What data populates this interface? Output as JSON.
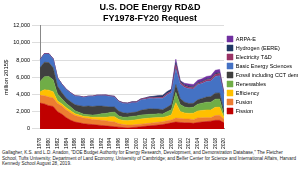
{
  "chart_data": {
    "type": "line",
    "stacked": true,
    "title": "U.S. DOE Energy RD&D",
    "subtitle": "FY1978-FY20 Request",
    "y_label": "million 2015$",
    "source": "Gallagher, K.S. and L.D. Anadon, \"DOE Budget Authority for Energy Research, Development, and Demonstration Database,\" The Fletcher School, Tufts University; Department of Land Economy, University of Cambridge; and Belfer Center for Science and International Affairs, Harvard Kennedy School August 28, 2019.",
    "legend": "right",
    "grid": true,
    "ylim": [
      0,
      12000
    ],
    "yticks": [
      0,
      {
        "value": 2000,
        "label": "2,000"
      },
      {
        "value": 4000,
        "label": "4,000"
      },
      {
        "value": 6000,
        "label": "6,000"
      },
      {
        "value": 8000,
        "label": "8,000"
      },
      {
        "value": 10000,
        "label": "10,000"
      },
      {
        "value": 12000,
        "label": "12,000"
      }
    ],
    "categories": [
      "1978",
      null,
      "1980",
      null,
      "1982",
      null,
      "1984",
      null,
      "1986",
      null,
      "1988",
      null,
      "1990",
      null,
      "1992",
      null,
      "1994",
      null,
      "1996",
      null,
      "1998",
      null,
      "2000",
      null,
      "2002",
      null,
      "2004",
      null,
      "2006",
      null,
      "2008",
      null,
      "2010",
      null,
      "2012",
      null,
      "2014",
      null,
      "2016",
      null,
      "2018",
      null,
      "2020"
    ],
    "series": [
      {
        "name": "Fission",
        "color": "#c00000",
        "values": [
          3000,
          2900,
          2700,
          2600,
          2000,
          1700,
          1300,
          1000,
          800,
          700,
          600,
          550,
          500,
          450,
          400,
          350,
          300,
          250,
          200,
          150,
          100,
          150,
          200,
          250,
          300,
          350,
          400,
          450,
          500,
          600,
          700,
          800,
          750,
          700,
          700,
          650,
          750,
          800,
          850,
          900,
          1000,
          1000,
          700
        ]
      },
      {
        "name": "Fusion",
        "color": "#ed7d31",
        "values": [
          900,
          950,
          1000,
          1000,
          950,
          950,
          900,
          850,
          750,
          700,
          650,
          650,
          600,
          600,
          600,
          600,
          550,
          550,
          400,
          350,
          350,
          300,
          300,
          300,
          300,
          300,
          300,
          330,
          330,
          350,
          330,
          450,
          470,
          450,
          450,
          420,
          520,
          480,
          450,
          400,
          550,
          580,
          420
        ]
      },
      {
        "name": "Efficiency",
        "color": "#ffc000",
        "values": [
          400,
          700,
          800,
          700,
          300,
          250,
          250,
          250,
          200,
          200,
          200,
          200,
          250,
          300,
          350,
          400,
          550,
          600,
          500,
          480,
          500,
          550,
          550,
          600,
          600,
          600,
          580,
          550,
          500,
          500,
          600,
          1800,
          800,
          700,
          650,
          750,
          800,
          850,
          900,
          900,
          950,
          950,
          200
        ]
      },
      {
        "name": "Renewables",
        "color": "#70ad47",
        "values": [
          1200,
          1500,
          1600,
          1400,
          800,
          600,
          500,
          450,
          350,
          300,
          250,
          250,
          250,
          300,
          400,
          450,
          500,
          550,
          400,
          380,
          420,
          450,
          450,
          450,
          450,
          440,
          430,
          420,
          400,
          550,
          600,
          1200,
          800,
          700,
          650,
          700,
          800,
          850,
          900,
          900,
          950,
          950,
          250
        ]
      },
      {
        "name": "Fossil including CCT demo",
        "color": "#404040",
        "values": [
          1600,
          1700,
          1600,
          1400,
          900,
          700,
          600,
          600,
          700,
          800,
          900,
          1000,
          1000,
          1000,
          900,
          800,
          650,
          600,
          550,
          500,
          450,
          450,
          450,
          550,
          600,
          650,
          600,
          550,
          500,
          500,
          600,
          900,
          700,
          550,
          500,
          450,
          500,
          550,
          600,
          650,
          700,
          700,
          550
        ]
      },
      {
        "name": "Basic Energy Sciences",
        "color": "#4472c4",
        "values": [
          900,
          950,
          1000,
          1000,
          950,
          950,
          1000,
          1000,
          1000,
          1050,
          1050,
          1100,
          1150,
          1200,
          1200,
          1250,
          1200,
          1150,
          1100,
          1100,
          1100,
          1150,
          1100,
          1200,
          1200,
          1200,
          1200,
          1250,
          1300,
          1450,
          1400,
          1800,
          1700,
          1700,
          1700,
          1650,
          1750,
          1750,
          1800,
          1800,
          1950,
          2000,
          1850
        ]
      },
      {
        "name": "Electricity T&D",
        "color": "#993366",
        "values": [
          50,
          60,
          60,
          60,
          50,
          50,
          50,
          50,
          50,
          50,
          50,
          50,
          60,
          60,
          70,
          80,
          80,
          70,
          60,
          60,
          60,
          70,
          80,
          90,
          100,
          120,
          120,
          130,
          140,
          150,
          150,
          500,
          200,
          200,
          180,
          170,
          160,
          160,
          200,
          220,
          250,
          250,
          100
        ]
      },
      {
        "name": "Hydrogen (EERE)",
        "color": "#1f3864",
        "values": [
          0,
          0,
          0,
          0,
          0,
          0,
          0,
          0,
          0,
          0,
          0,
          0,
          10,
          10,
          10,
          10,
          15,
          20,
          20,
          20,
          25,
          30,
          30,
          40,
          50,
          80,
          150,
          180,
          200,
          220,
          220,
          250,
          180,
          120,
          110,
          100,
          100,
          100,
          100,
          100,
          110,
          120,
          50
        ]
      },
      {
        "name": "ARPA-E",
        "color": "#7030a0",
        "values": [
          0,
          0,
          0,
          0,
          0,
          0,
          0,
          0,
          0,
          0,
          0,
          0,
          0,
          0,
          0,
          0,
          0,
          0,
          0,
          0,
          0,
          0,
          0,
          0,
          0,
          0,
          0,
          0,
          0,
          0,
          0,
          400,
          0,
          180,
          275,
          270,
          280,
          280,
          290,
          300,
          350,
          360,
          0
        ]
      }
    ]
  }
}
